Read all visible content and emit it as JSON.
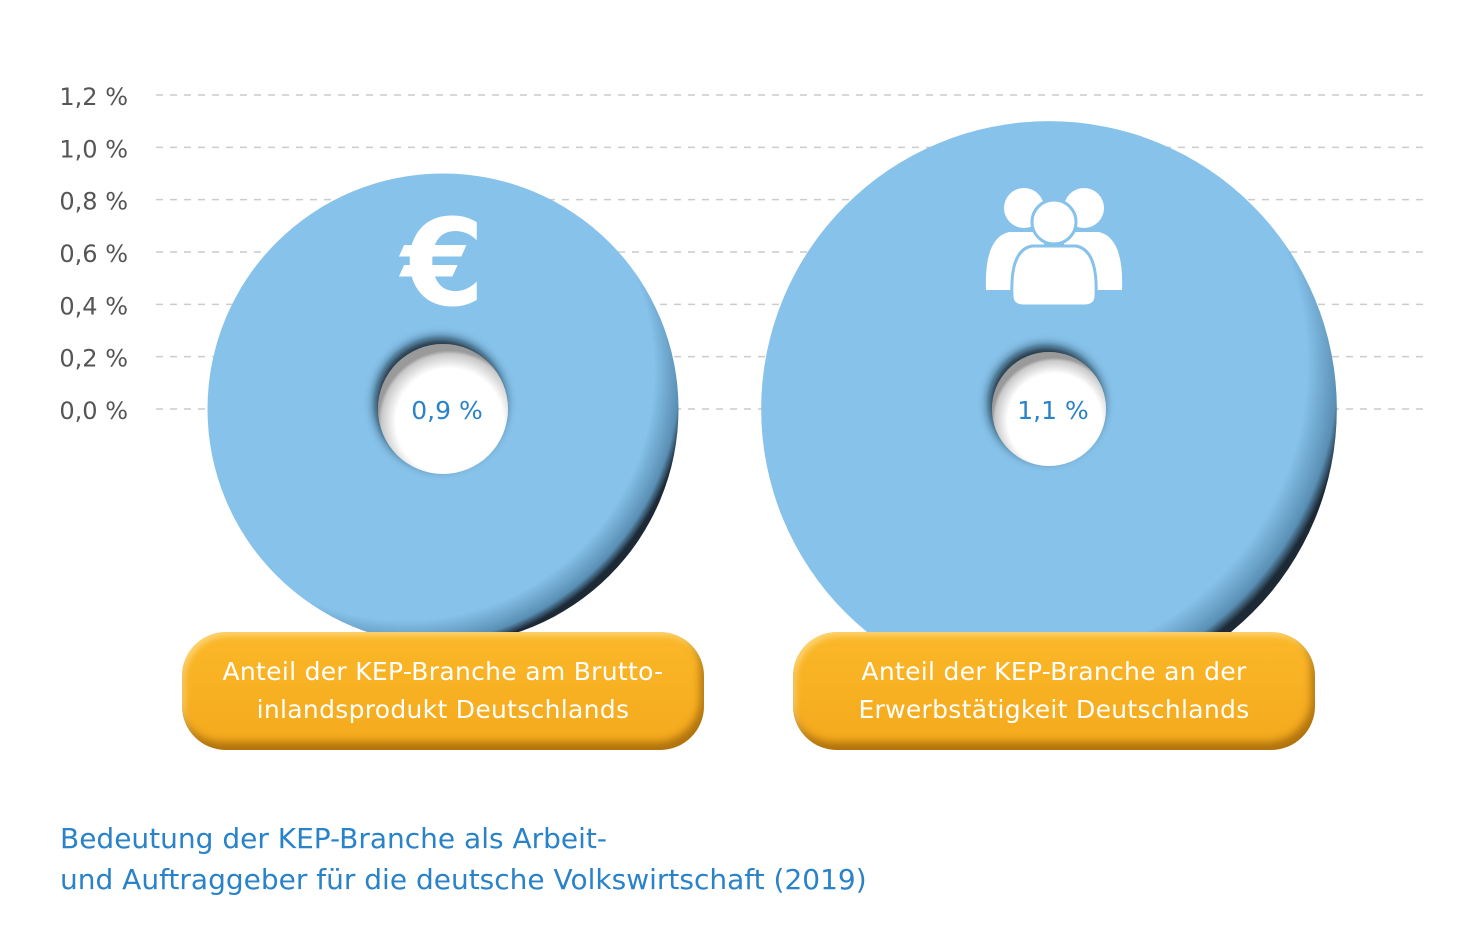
{
  "chart_data": {
    "type": "bubble",
    "y_ticks": [
      "1,2 %",
      "1,0 %",
      "0,8 %",
      "0,6 %",
      "0,4 %",
      "0,2 %",
      "0,0 %"
    ],
    "y_tick_values": [
      1.2,
      1.0,
      0.8,
      0.6,
      0.4,
      0.2,
      0.0
    ],
    "ylim": [
      0,
      1.2
    ],
    "grid": true,
    "series": [
      {
        "value": 0.9,
        "value_label": "0,9 %",
        "icon": "euro-icon",
        "label_lines": [
          "Anteil der KEP-Branche am Brutto-",
          "inlandsprodukt Deutschlands"
        ]
      },
      {
        "value": 1.1,
        "value_label": "1,1 %",
        "icon": "people-group-icon",
        "label_lines": [
          "Anteil der KEP-Branche an der",
          "Erwerbstätigkeit Deutschlands"
        ]
      }
    ],
    "colors": {
      "bubble": "#86c2ea",
      "label_bg": "#f9b224",
      "value_text": "#2a82c8",
      "caption": "#2a82c8",
      "grid": "#cccccc"
    },
    "caption_lines": [
      "Bedeutung der KEP-Branche als Arbeit-",
      "und Auftraggeber für die deutsche Volkswirtschaft (2019)"
    ]
  }
}
